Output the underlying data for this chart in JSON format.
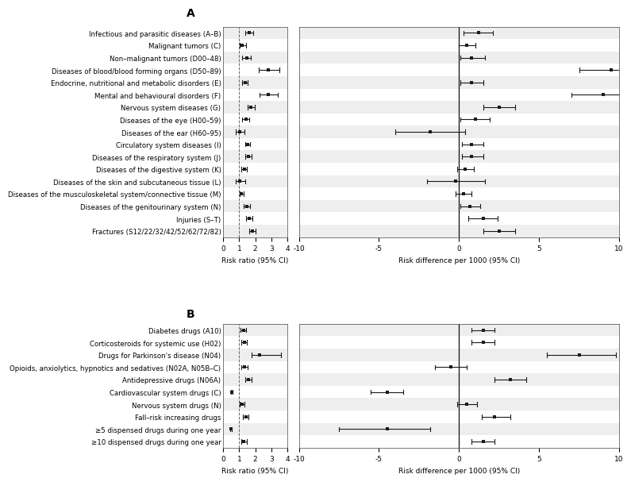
{
  "panel_A": {
    "labels": [
      "Infectious and parasitic diseases (A–B)",
      "Malignant tumors (C)",
      "Non–malignant tumors (D00–48)",
      "Diseases of blood/blood forming organs (D50–89)",
      "Endocrine, nutritional and metabolic disorders (E)",
      "Mental and behavioural disorders (F)",
      "Nervous system diseases (G)",
      "Diseases of the eye (H00–59)",
      "Diseases of the ear (H60–95)",
      "Circulatory system diseases (I)",
      "Diseases of the respiratory system (J)",
      "Diseases of the digestive system (K)",
      "Diseases of the skin and subcutaneous tissue (L)",
      "Diseases of the musculoskeletal system/connective tissue (M)",
      "Diseases of the genitourinary system (N)",
      "Injuries (S–T)",
      "Fractures (S12/22/32/42/52/62/72/82)"
    ],
    "rr_est": [
      1.6,
      1.2,
      1.45,
      2.8,
      1.35,
      2.8,
      1.7,
      1.4,
      1.05,
      1.5,
      1.55,
      1.3,
      1.05,
      1.15,
      1.45,
      1.6,
      1.8
    ],
    "rr_lo": [
      1.35,
      1.05,
      1.2,
      2.2,
      1.18,
      2.25,
      1.5,
      1.2,
      0.8,
      1.38,
      1.38,
      1.15,
      0.78,
      1.02,
      1.28,
      1.42,
      1.62
    ],
    "rr_hi": [
      1.88,
      1.4,
      1.72,
      3.5,
      1.52,
      3.4,
      1.95,
      1.6,
      1.3,
      1.65,
      1.75,
      1.48,
      1.35,
      1.28,
      1.65,
      1.82,
      2.0
    ],
    "rd_est": [
      1.2,
      0.5,
      0.8,
      9.5,
      0.8,
      9.0,
      2.5,
      1.0,
      -1.8,
      0.8,
      0.8,
      0.4,
      -0.2,
      0.3,
      0.7,
      1.5,
      2.5
    ],
    "rd_lo": [
      0.3,
      0.0,
      0.1,
      7.5,
      0.1,
      7.0,
      1.5,
      0.1,
      -4.0,
      0.2,
      0.2,
      -0.1,
      -2.0,
      -0.2,
      0.1,
      0.6,
      1.5
    ],
    "rd_hi": [
      2.1,
      1.0,
      1.6,
      11.5,
      1.5,
      11.0,
      3.5,
      1.9,
      0.4,
      1.5,
      1.5,
      0.9,
      1.6,
      0.8,
      1.3,
      2.4,
      3.5
    ]
  },
  "panel_B": {
    "labels": [
      "Diabetes drugs (A10)",
      "Corticosteroids for systemic use (H02)",
      "Drugs for Parkinson's disease (N04)",
      "Opioids, anxiolytics, hypnotics and sedatives (N02A, N05B–C)",
      "Antidepressive drugs (N06A)",
      "Cardiovascular system drugs (C)",
      "Nervous system drugs (N)",
      "Fall–risk increasing drugs",
      "≥5 dispensed drugs during one year",
      "≥10 dispensed drugs during one year"
    ],
    "rr_est": [
      1.25,
      1.3,
      2.25,
      1.3,
      1.55,
      0.52,
      1.18,
      1.4,
      0.48,
      1.28
    ],
    "rr_lo": [
      1.1,
      1.15,
      1.75,
      1.15,
      1.38,
      0.47,
      1.05,
      1.22,
      0.42,
      1.12
    ],
    "rr_hi": [
      1.42,
      1.48,
      3.6,
      1.5,
      1.75,
      0.57,
      1.3,
      1.58,
      0.55,
      1.45
    ],
    "rd_est": [
      1.5,
      1.5,
      7.5,
      -0.5,
      3.2,
      -4.5,
      0.5,
      2.2,
      -4.5,
      1.5
    ],
    "rd_lo": [
      0.8,
      0.8,
      5.5,
      -1.5,
      2.2,
      -5.5,
      -0.1,
      1.4,
      -7.5,
      0.8
    ],
    "rd_hi": [
      2.2,
      2.2,
      9.8,
      0.5,
      4.2,
      -3.5,
      1.1,
      3.2,
      -1.8,
      2.2
    ]
  },
  "rr_xlim": [
    0,
    4
  ],
  "rr_xticks": [
    0,
    1,
    2,
    3,
    4
  ],
  "rd_xlim": [
    -10,
    10
  ],
  "rd_xticks": [
    -10,
    -5,
    0,
    5,
    10
  ],
  "rr_ref": 1.0,
  "rd_ref": 0.0,
  "xlabel_rr": "Risk ratio (95% CI)",
  "xlabel_rd": "Risk difference per 1000 (95% CI)",
  "panel_A_label": "A",
  "panel_B_label": "B",
  "marker_color": "#1a1a1a",
  "line_color": "#1a1a1a",
  "bg_color": "#ffffff",
  "stripe_color": "#eeeeee",
  "fontsize_label": 6.2,
  "fontsize_axis": 6.5,
  "fontsize_panel": 10,
  "gap_label_A": "-10",
  "gap_label_B": "-10"
}
